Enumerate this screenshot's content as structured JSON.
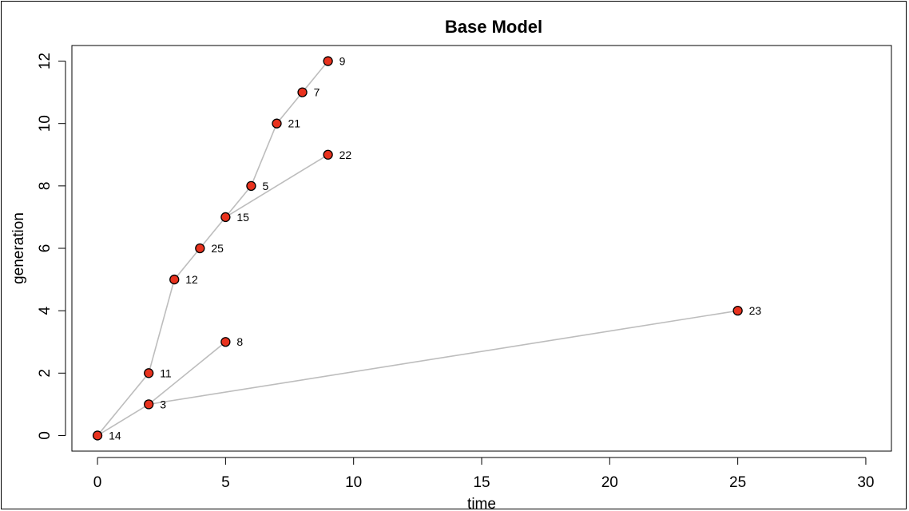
{
  "chart_data": {
    "type": "scatter",
    "title": "Base Model",
    "xlabel": "time",
    "ylabel": "generation",
    "xlim": [
      -1,
      31
    ],
    "ylim": [
      -0.5,
      12.5
    ],
    "x_ticks": [
      0,
      5,
      10,
      15,
      20,
      25,
      30
    ],
    "y_ticks": [
      0,
      2,
      4,
      6,
      8,
      10,
      12
    ],
    "grid": false,
    "legend": "none",
    "point_color": "#e8321e",
    "edge_color": "#bdbdbd",
    "nodes": [
      {
        "label": "14",
        "x": 0,
        "y": 0
      },
      {
        "label": "3",
        "x": 2,
        "y": 1
      },
      {
        "label": "11",
        "x": 2,
        "y": 2
      },
      {
        "label": "8",
        "x": 5,
        "y": 3
      },
      {
        "label": "23",
        "x": 25,
        "y": 4
      },
      {
        "label": "12",
        "x": 3,
        "y": 5
      },
      {
        "label": "25",
        "x": 4,
        "y": 6
      },
      {
        "label": "15",
        "x": 5,
        "y": 7
      },
      {
        "label": "5",
        "x": 6,
        "y": 8
      },
      {
        "label": "22",
        "x": 9,
        "y": 9
      },
      {
        "label": "21",
        "x": 7,
        "y": 10
      },
      {
        "label": "7",
        "x": 8,
        "y": 11
      },
      {
        "label": "9",
        "x": 9,
        "y": 12
      }
    ],
    "edges": [
      [
        "14",
        "3"
      ],
      [
        "14",
        "11"
      ],
      [
        "3",
        "8"
      ],
      [
        "3",
        "23"
      ],
      [
        "11",
        "12"
      ],
      [
        "12",
        "25"
      ],
      [
        "25",
        "15"
      ],
      [
        "15",
        "5"
      ],
      [
        "15",
        "22"
      ],
      [
        "5",
        "21"
      ],
      [
        "21",
        "7"
      ],
      [
        "7",
        "9"
      ]
    ]
  }
}
